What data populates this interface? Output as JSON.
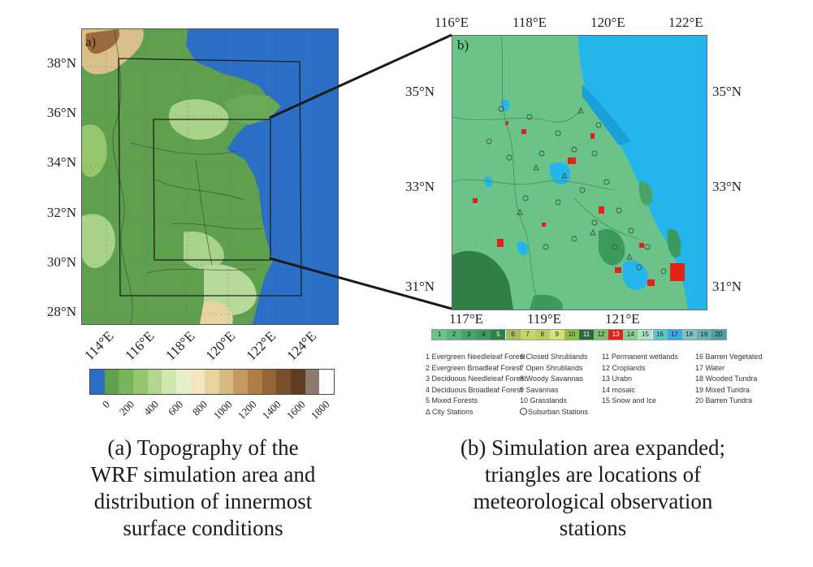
{
  "panel_a": {
    "label": "a)",
    "lat_labels": [
      "38°N",
      "36°N",
      "34°N",
      "32°N",
      "30°N",
      "28°N"
    ],
    "lon_labels": [
      "114°E",
      "116°E",
      "118°E",
      "120°E",
      "122°E",
      "124°E"
    ],
    "colorbar": {
      "ticks": [
        "0",
        "200",
        "400",
        "600",
        "800",
        "1000",
        "1200",
        "1400",
        "1600",
        "1800"
      ],
      "colors": [
        "#2b6fc6",
        "#5fa04e",
        "#78b45a",
        "#95c66e",
        "#b2d68c",
        "#cfe6ae",
        "#e6efc9",
        "#f1e6bf",
        "#e6d3a0",
        "#d6b880",
        "#c59a5e",
        "#b07e45",
        "#956536",
        "#7a4f2b",
        "#5e3d22",
        "#8e7b70",
        "#fefefe"
      ]
    },
    "colors": {
      "sea": "#2b6fc6",
      "plain": "#5fa04e",
      "hill": "#a9d28a",
      "mountain": "#d9c08a",
      "peak": "#9c6a3c"
    }
  },
  "panel_b": {
    "label": "b)",
    "top_lon_labels": [
      "116°E",
      "118°E",
      "120°E",
      "122°E"
    ],
    "bottom_lon_labels": [
      "117°E",
      "119°E",
      "121°E"
    ],
    "left_lat_labels": [
      "35°N",
      "33°N",
      "31°N"
    ],
    "right_lat_labels": [
      "35°N",
      "33°N",
      "31°N"
    ],
    "landcover_bar": {
      "numbers": [
        "1",
        "2",
        "3",
        "4",
        "5",
        "6",
        "7",
        "8",
        "9",
        "10",
        "11",
        "12",
        "13",
        "14",
        "15",
        "16",
        "17",
        "18",
        "19",
        "20"
      ],
      "colors": [
        "#6cc38a",
        "#55b87a",
        "#48a46a",
        "#3d9a5e",
        "#2f7f47",
        "#9fbe5c",
        "#c5d46f",
        "#b7cf62",
        "#d7e27f",
        "#8dbd4a",
        "#2c6a3a",
        "#7ec06c",
        "#e2231a",
        "#88cf8f",
        "#b0e4c5",
        "#5fc8c7",
        "#3aa9e6",
        "#7cc5c0",
        "#62b3b0",
        "#4f9f9d"
      ]
    },
    "legend": {
      "col1": [
        "1 Evergreen Needleleaf Forest",
        "2 Evergreen Broadleaf Forest",
        "3 Deciduous Needleleaf Forest",
        "4 Deciduous Broadleaf Forest",
        "5 Mixed Forests",
        "Δ City Stations"
      ],
      "col2": [
        "6 Closed Shrublands",
        "7 Open Shrublands",
        "8 Woody Savannas",
        "9 Savannas",
        "10 Grasslands",
        "Suburban Stations"
      ],
      "col3": [
        "11 Permanent wetlands",
        "12 Croplands",
        "13 Urabn",
        "14 mosaic",
        "15 Snow and Ice"
      ],
      "col4": [
        "16 Barren Vegetated",
        "17 Water",
        "18 Wooded Tundra",
        "19 Mixed Tundra",
        "20 Barren Tundra"
      ]
    },
    "colors": {
      "land": "#6cc38a",
      "water": "#23b5ec",
      "urban": "#e2231a",
      "forest": "#2f7f47"
    }
  },
  "captions": {
    "a": [
      "(a) Topography of the",
      "WRF simulation area and",
      "distribution of innermost",
      "surface conditions"
    ],
    "b": [
      "(b) Simulation area expanded;",
      "triangles are locations of",
      "meteorological observation",
      "stations"
    ]
  }
}
